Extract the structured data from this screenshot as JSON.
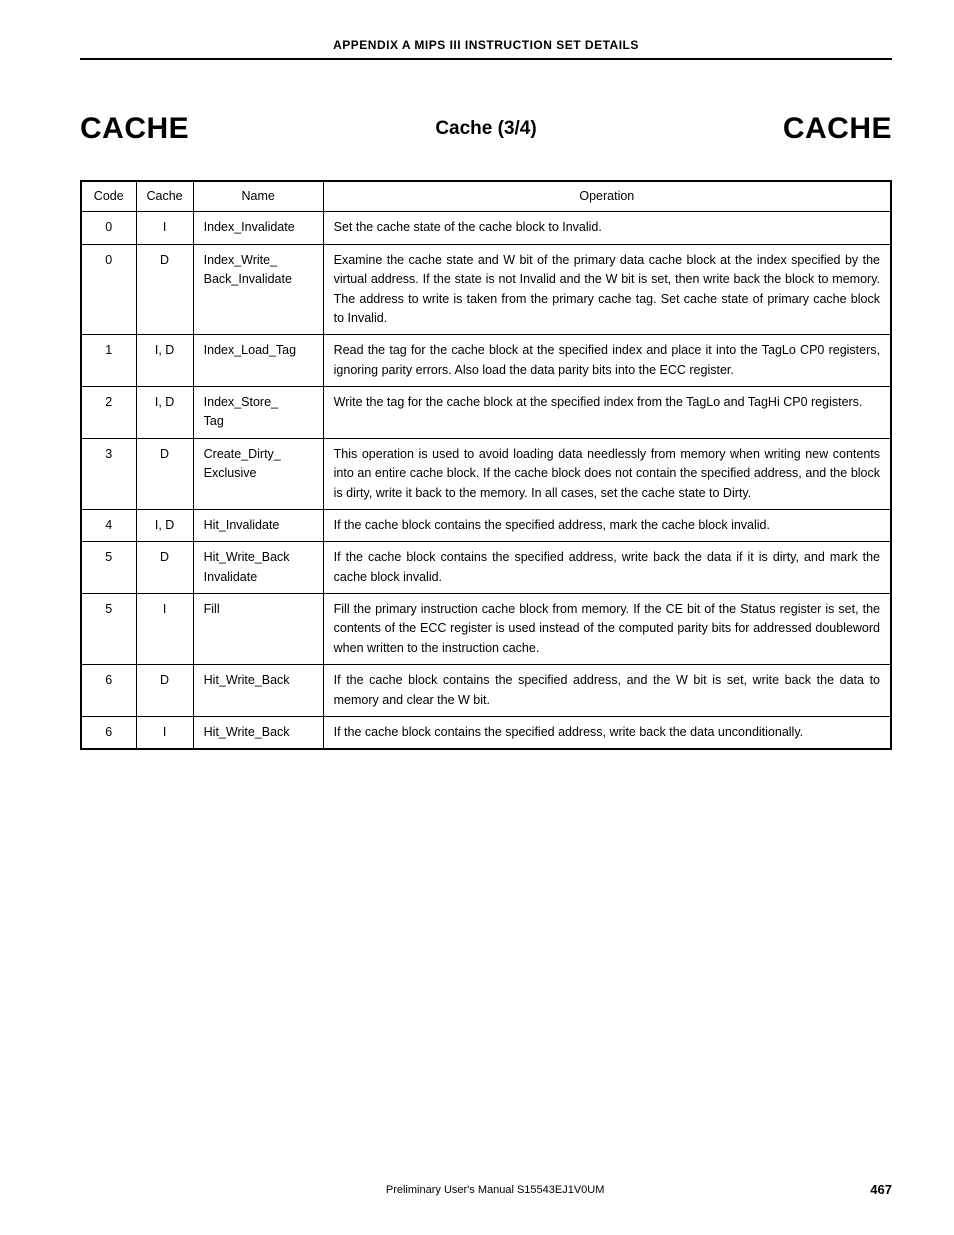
{
  "appendix_header": "APPENDIX  A   MIPS  III  INSTRUCTION  SET  DETAILS",
  "title_left": "CACHE",
  "title_center": "Cache (3/4)",
  "title_right": "CACHE",
  "columns": {
    "code": "Code",
    "cache": "Cache",
    "name": "Name",
    "operation": "Operation"
  },
  "rows": [
    {
      "code": "0",
      "cache": "I",
      "name": "Index_Invalidate",
      "operation": "Set the cache state of the cache block to Invalid."
    },
    {
      "code": "0",
      "cache": "D",
      "name": "Index_Write_\nBack_Invalidate",
      "operation": "Examine the cache state and W bit of the primary data cache block at the index specified by the virtual address.  If the state is not Invalid and the W bit is set, then write back the block to memory.  The address to write is taken from the primary cache tag.  Set cache state of primary cache block to Invalid."
    },
    {
      "code": "1",
      "cache": "I, D",
      "name": "Index_Load_Tag",
      "operation": "Read the tag for the cache block at the specified index and place it into the TagLo CP0 registers, ignoring parity errors.  Also load the data parity bits into the ECC register."
    },
    {
      "code": "2",
      "cache": "I, D",
      "name": "Index_Store_\nTag",
      "operation": "Write the tag for the cache block at the specified index from the TagLo and TagHi CP0 registers."
    },
    {
      "code": "3",
      "cache": "D",
      "name": "Create_Dirty_\nExclusive",
      "operation": "This operation is used to avoid loading data needlessly from memory when writing new contents into an entire cache block.  If the cache block does not contain the specified address, and the block is dirty, write it back to the memory.  In all cases, set the cache state to Dirty."
    },
    {
      "code": "4",
      "cache": "I, D",
      "name": "Hit_Invalidate",
      "operation": "If the cache block contains the specified address, mark the cache block invalid."
    },
    {
      "code": "5",
      "cache": "D",
      "name": "Hit_Write_Back\nInvalidate",
      "operation": "If the cache block contains the specified address, write back the data if it is dirty, and mark the cache block invalid."
    },
    {
      "code": "5",
      "cache": "I",
      "name": "Fill",
      "operation": "Fill the primary instruction cache block from memory.  If the CE bit of the Status register is set, the contents of the ECC register is used instead of the computed parity bits for addressed doubleword when written to the instruction cache."
    },
    {
      "code": "6",
      "cache": "D",
      "name": "Hit_Write_Back",
      "operation": "If the cache block contains the specified address, and the W bit is set, write back the data to memory and clear the W bit."
    },
    {
      "code": "6",
      "cache": "I",
      "name": "Hit_Write_Back",
      "operation": "If the cache block contains the specified address, write back the data unconditionally."
    }
  ],
  "footer_center": "Preliminary User's Manual  S15543EJ1V0UM",
  "footer_page": "467"
}
